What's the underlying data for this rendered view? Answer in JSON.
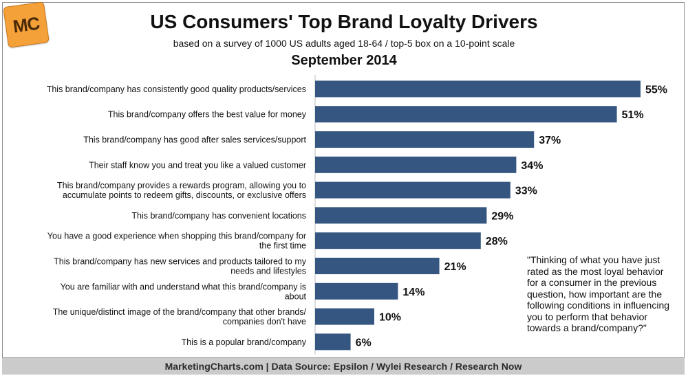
{
  "logo": {
    "text": "MC"
  },
  "title": "US Consumers' Top Brand Loyalty Drivers",
  "subtitle": "based on a survey of 1000 US adults aged 18-64 / top-5 box on a 10-point scale",
  "date": "September 2014",
  "note": "\"Thinking of what you have just rated as the most loyal behavior for a consumer in the previous question, how important are the following conditions in influencing you to perform that behavior towards a brand/company?\"",
  "footer": "MarketingCharts.com | Data Source: Epsilon / Wylei Research / Research Now",
  "colors": {
    "bar": "#355680",
    "logo": "#f4a13a",
    "footer": "#cbcbcb"
  },
  "chart_data": {
    "type": "bar",
    "orientation": "horizontal",
    "categories": [
      [
        "This brand/company has consistently good quality products/services"
      ],
      [
        "This brand/company offers the best value for money"
      ],
      [
        "This brand/company has good after sales services/support"
      ],
      [
        "Their staff know you and treat you like a valued customer"
      ],
      [
        "This brand/company provides a rewards program, allowing you to",
        "accumulate points to redeem gifts, discounts, or exclusive offers"
      ],
      [
        "This brand/company has convenient locations"
      ],
      [
        "You have a good experience when shopping this brand/company for",
        "the first time"
      ],
      [
        "This brand/company has new services and products tailored to my",
        "needs and lifestyles"
      ],
      [
        "You are familiar with and understand what this brand/company is",
        "about"
      ],
      [
        "The unique/distinct image of the brand/company that other brands/",
        "companies don't have"
      ],
      [
        "This is a popular brand/company"
      ]
    ],
    "values": [
      55,
      51,
      37,
      34,
      33,
      29,
      28,
      21,
      14,
      10,
      6
    ],
    "value_labels": [
      "55%",
      "51%",
      "37%",
      "34%",
      "33%",
      "29%",
      "28%",
      "21%",
      "14%",
      "10%",
      "6%"
    ],
    "xlim": [
      0,
      55
    ],
    "grid": false,
    "legend": "none"
  }
}
